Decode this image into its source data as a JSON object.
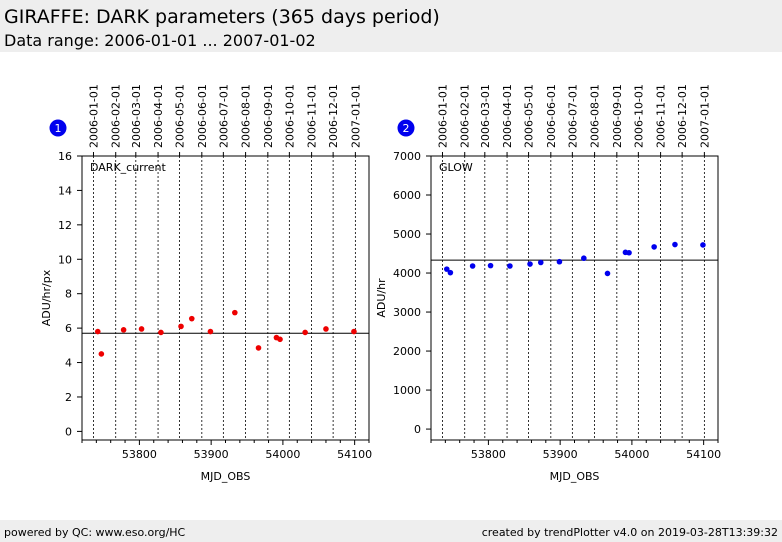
{
  "header": {
    "title": "GIRAFFE: DARK parameters (365 days period)",
    "subtitle": "Data range: 2006-01-01 ... 2007-01-02"
  },
  "footer": {
    "left": "powered by QC: www.eso.org/HC",
    "right": "created by trendPlotter v4.0 on 2019-03-28T13:39:32"
  },
  "colors": {
    "panel1_points": "#ee0000",
    "panel2_points": "#0000ee"
  },
  "chart_data": [
    {
      "type": "scatter",
      "badge": "1",
      "label": "DARK_current",
      "xlabel": "MJD_OBS",
      "ylabel": "ADU/hr/px",
      "xlim": [
        53720,
        54120
      ],
      "ylim": [
        -0.5,
        16
      ],
      "xticks": [
        53800,
        53900,
        54000,
        54100
      ],
      "yticks": [
        0,
        2,
        4,
        6,
        8,
        10,
        12,
        14,
        16
      ],
      "top_date_labels": [
        "2006-01-01",
        "2006-02-01",
        "2006-03-01",
        "2006-04-01",
        "2006-05-01",
        "2006-06-01",
        "2006-07-01",
        "2006-08-01",
        "2006-09-01",
        "2006-10-01",
        "2006-11-01",
        "2006-12-01",
        "2007-01-01"
      ],
      "top_date_mjd": [
        53736,
        53767,
        53795,
        53826,
        53856,
        53887,
        53917,
        53948,
        53979,
        54009,
        54040,
        54070,
        54101
      ],
      "reference_line": 5.7,
      "x": [
        53742,
        53747,
        53778,
        53803,
        53830,
        53858,
        53873,
        53899,
        53933,
        53966,
        53991,
        53996,
        54031,
        54060,
        54099
      ],
      "y": [
        5.8,
        4.5,
        5.9,
        5.95,
        5.75,
        6.1,
        6.55,
        5.8,
        6.9,
        4.85,
        5.45,
        5.35,
        5.75,
        5.95,
        5.8
      ]
    },
    {
      "type": "scatter",
      "badge": "2",
      "label": "GLOW",
      "xlabel": "MJD_OBS",
      "ylabel": "ADU/hr",
      "xlim": [
        53720,
        54120
      ],
      "ylim": [
        -280,
        7000
      ],
      "xticks": [
        53800,
        53900,
        54000,
        54100
      ],
      "yticks": [
        0,
        1000,
        2000,
        3000,
        4000,
        5000,
        6000,
        7000
      ],
      "top_date_labels": [
        "2006-01-01",
        "2006-02-01",
        "2006-03-01",
        "2006-04-01",
        "2006-05-01",
        "2006-06-01",
        "2006-07-01",
        "2006-08-01",
        "2006-09-01",
        "2006-10-01",
        "2006-11-01",
        "2006-12-01",
        "2007-01-01"
      ],
      "top_date_mjd": [
        53736,
        53767,
        53795,
        53826,
        53856,
        53887,
        53917,
        53948,
        53979,
        54009,
        54040,
        54070,
        54101
      ],
      "reference_line": 4330,
      "x": [
        53742,
        53747,
        53778,
        53803,
        53830,
        53858,
        53873,
        53899,
        53933,
        53966,
        53991,
        53996,
        54031,
        54060,
        54099
      ],
      "y": [
        4100,
        4010,
        4180,
        4190,
        4180,
        4230,
        4270,
        4290,
        4380,
        3990,
        4530,
        4520,
        4670,
        4730,
        4720
      ]
    }
  ]
}
